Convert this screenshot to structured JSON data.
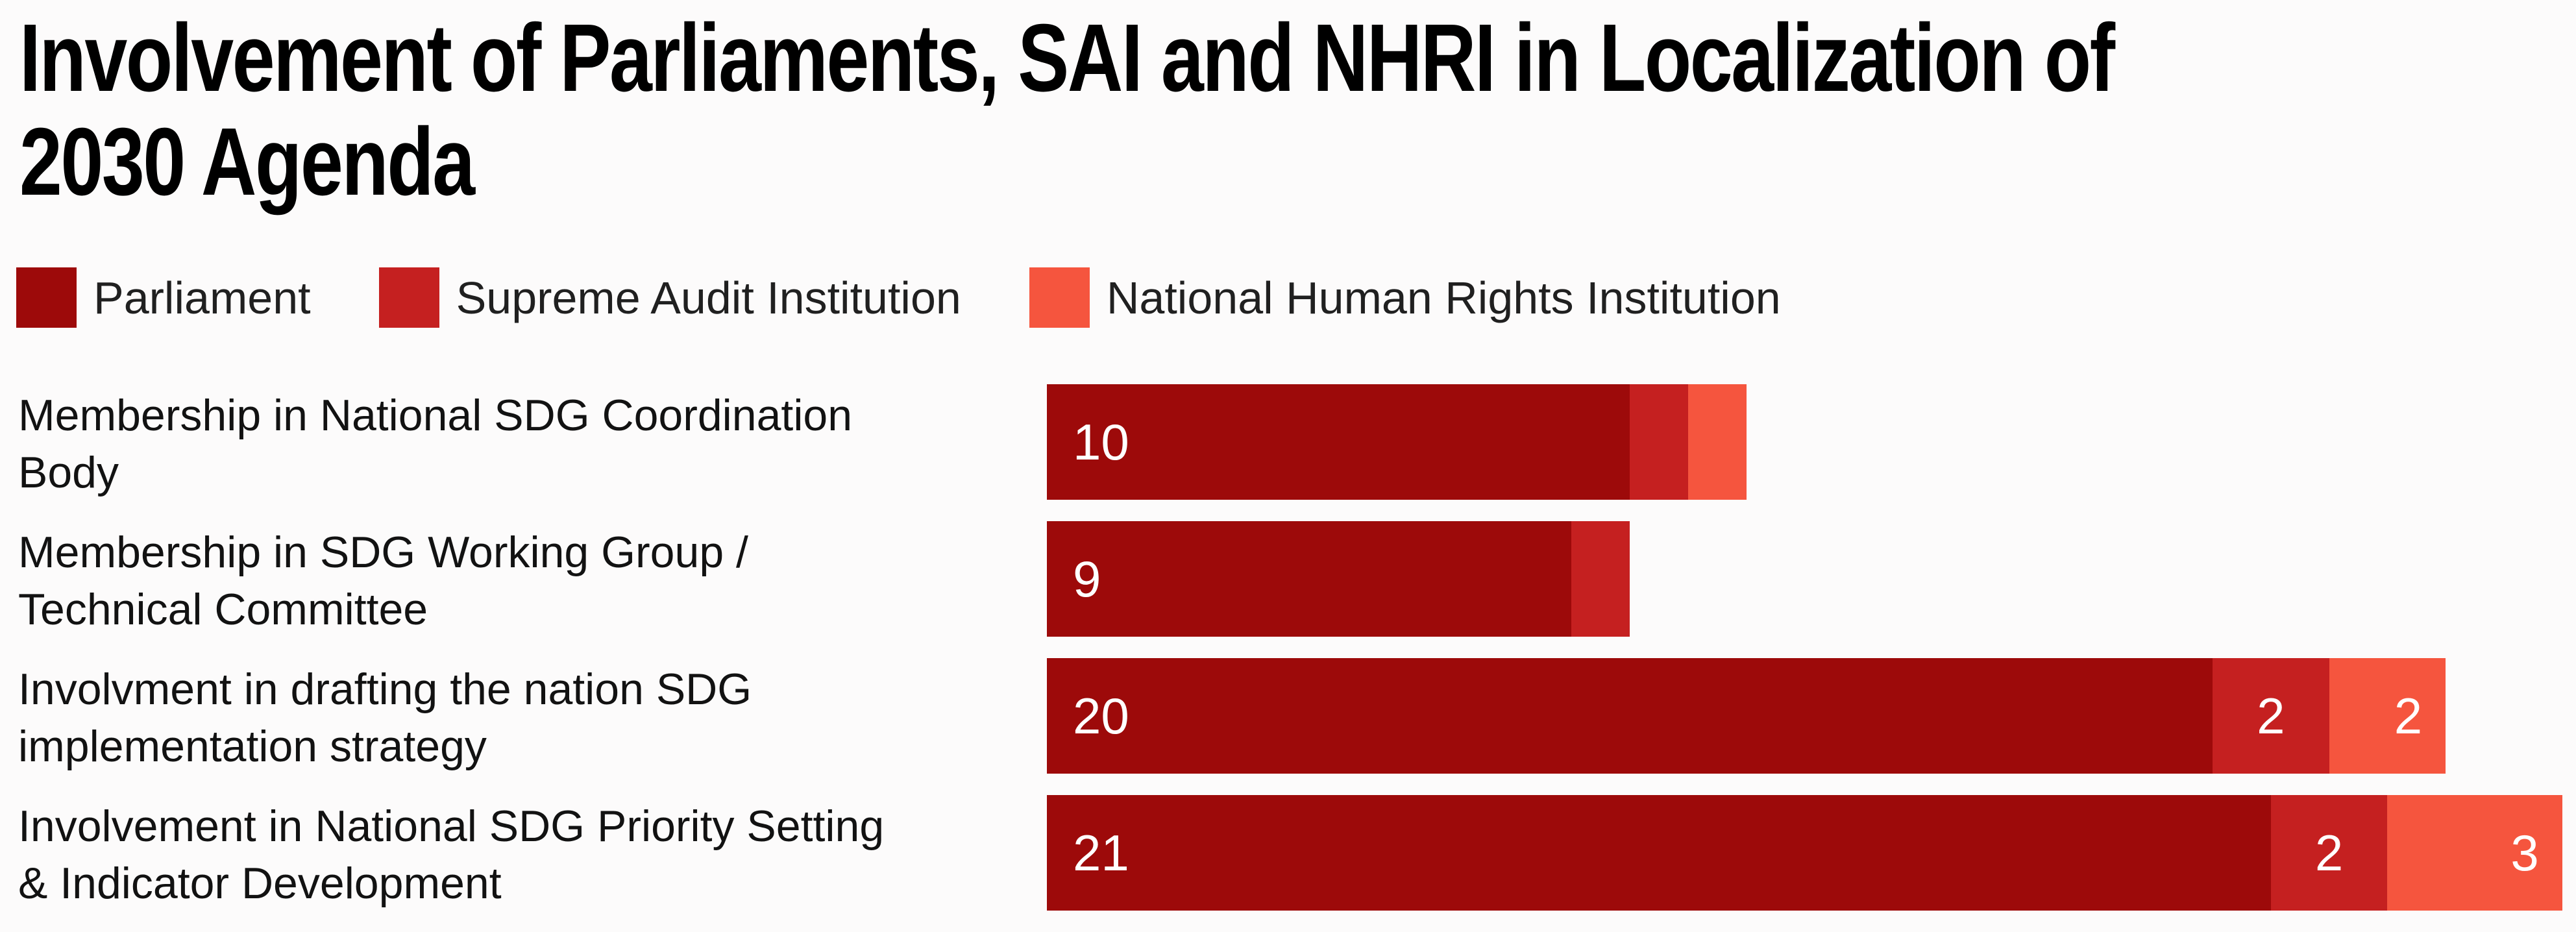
{
  "title": {
    "text": "Involvement of Parliaments, SAI and NHRI in Localization of 2030 Agenda",
    "lines": [
      "Involvement of Parliaments, SAI and NHRI in Localization of",
      "2030 Agenda"
    ]
  },
  "legend": {
    "items": [
      {
        "label": "Parliament",
        "color": "#9D0A0A"
      },
      {
        "label": "Supreme Audit Institution",
        "color": "#C52020"
      },
      {
        "label": "National Human Rights Institution",
        "color": "#F5553E"
      }
    ]
  },
  "chart_data": {
    "type": "bar",
    "orientation": "horizontal",
    "stacked": true,
    "grid": false,
    "legend_position": "top",
    "title": "Involvement of Parliaments, SAI and NHRI in Localization of 2030 Agenda",
    "categories": [
      "Membership in National SDG Coordination Body",
      "Membership in SDG Working Group / Technical Committee",
      "Involvment in drafting the nation SDG implementation strategy",
      "Involvement in National SDG Priority Setting & Indicator Development"
    ],
    "category_label_lines": [
      [
        "Membership in National SDG Coordination",
        "Body"
      ],
      [
        "Membership in SDG Working Group /",
        "Technical Committee"
      ],
      [
        "Involvment in drafting the nation SDG",
        "implementation strategy"
      ],
      [
        "Involvement in National SDG Priority Setting",
        "& Indicator Development"
      ]
    ],
    "series": [
      {
        "name": "Parliament",
        "color": "#9D0A0A",
        "values": [
          10,
          9,
          20,
          21
        ]
      },
      {
        "name": "Supreme Audit Institution",
        "color": "#C52020",
        "values": [
          1,
          1,
          2,
          2
        ]
      },
      {
        "name": "National Human Rights Institution",
        "color": "#F5553E",
        "values": [
          1,
          0,
          2,
          3
        ]
      }
    ],
    "xlim": [
      0,
      26
    ],
    "value_label_min_to_show": 2,
    "visible_value_labels": [
      "10",
      "9",
      "20",
      "2",
      "2",
      "21",
      "2",
      "3"
    ]
  }
}
